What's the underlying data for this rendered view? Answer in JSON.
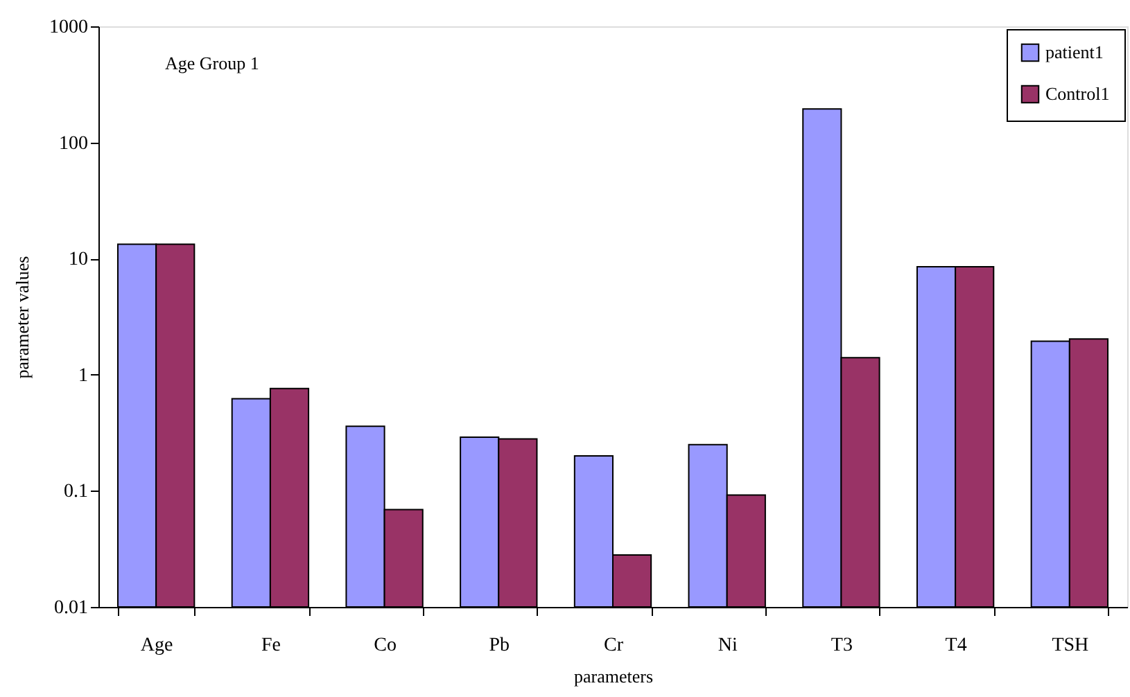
{
  "chart_data": {
    "type": "bar",
    "xlabel": "parameters",
    "ylabel": "parameter values",
    "annotations": [
      "Age Group 1"
    ],
    "categories": [
      "Age",
      "Fe",
      "Co",
      "Pb",
      "Cr",
      "Ni",
      "T3",
      "T4",
      "TSH"
    ],
    "series": [
      {
        "name": "patient1",
        "color": "#9999ff",
        "values": [
          13.3,
          0.62,
          0.36,
          0.29,
          0.2,
          0.25,
          194,
          8.5,
          1.94
        ]
      },
      {
        "name": "Control1",
        "color": "#993366",
        "values": [
          13.3,
          0.76,
          0.069,
          0.28,
          0.028,
          0.092,
          1.4,
          8.5,
          2.03
        ]
      }
    ],
    "log": true,
    "ylim": [
      0.01,
      1000
    ],
    "yticks": [
      0.01,
      0.1,
      1,
      10,
      100,
      1000
    ],
    "grid": false,
    "legend": "top right"
  }
}
